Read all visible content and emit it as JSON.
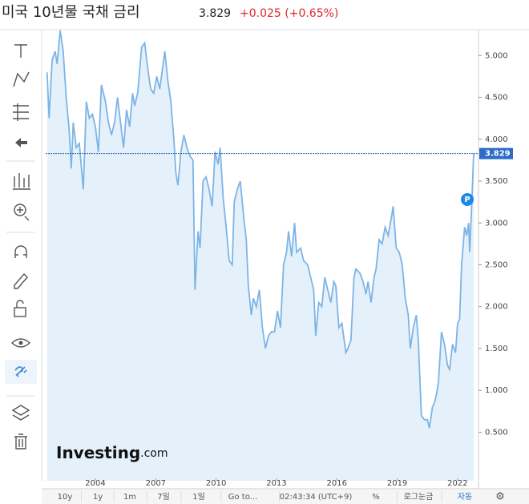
{
  "header": {
    "title": "미국 10년물 국채 금리",
    "change": "+0.025 (+0.65%)"
  },
  "chart_data": {
    "type": "line",
    "color": "#7db4e6",
    "area_color": "#e4f1fb",
    "last_value": 3.829,
    "marker_label": "P",
    "logo": "Investing",
    "logo_suffix": ".com",
    "x": [
      2001.6,
      2001.7,
      2001.85,
      2002.0,
      2002.1,
      2002.25,
      2002.4,
      2002.55,
      2002.7,
      2002.8,
      2002.9,
      2003.05,
      2003.2,
      2003.4,
      2003.55,
      2003.7,
      2003.85,
      2004.0,
      2004.15,
      2004.3,
      2004.5,
      2004.65,
      2004.8,
      2004.95,
      2005.1,
      2005.25,
      2005.4,
      2005.55,
      2005.7,
      2005.85,
      2005.95,
      2006.1,
      2006.3,
      2006.45,
      2006.6,
      2006.75,
      2006.9,
      2007.05,
      2007.2,
      2007.45,
      2007.6,
      2007.75,
      2007.9,
      2008.0,
      2008.1,
      2008.25,
      2008.4,
      2008.55,
      2008.7,
      2008.85,
      2008.95,
      2009.1,
      2009.2,
      2009.35,
      2009.5,
      2009.65,
      2009.8,
      2009.95,
      2010.1,
      2010.2,
      2010.35,
      2010.5,
      2010.65,
      2010.8,
      2010.9,
      2011.05,
      2011.2,
      2011.4,
      2011.5,
      2011.6,
      2011.75,
      2011.85,
      2012.0,
      2012.15,
      2012.3,
      2012.45,
      2012.6,
      2012.75,
      2012.9,
      2013.05,
      2013.2,
      2013.35,
      2013.5,
      2013.6,
      2013.75,
      2013.9,
      2014.0,
      2014.2,
      2014.35,
      2014.55,
      2014.7,
      2014.85,
      2014.95,
      2015.1,
      2015.25,
      2015.4,
      2015.55,
      2015.7,
      2015.85,
      2015.95,
      2016.1,
      2016.25,
      2016.45,
      2016.55,
      2016.7,
      2016.85,
      2016.95,
      2017.15,
      2017.3,
      2017.45,
      2017.55,
      2017.7,
      2017.85,
      2017.95,
      2018.1,
      2018.25,
      2018.4,
      2018.55,
      2018.7,
      2018.8,
      2018.95,
      2019.1,
      2019.25,
      2019.4,
      2019.55,
      2019.65,
      2019.8,
      2019.95,
      2020.05,
      2020.2,
      2020.35,
      2020.5,
      2020.6,
      2020.75,
      2020.85,
      2020.95,
      2021.05,
      2021.2,
      2021.35,
      2021.5,
      2021.6,
      2021.75,
      2021.9,
      2022.0,
      2022.1,
      2022.2,
      2022.35,
      2022.45,
      2022.55,
      2022.6,
      2022.7,
      2022.8
    ],
    "values": [
      4.8,
      4.25,
      4.95,
      5.05,
      4.9,
      5.3,
      5.05,
      4.5,
      4.1,
      3.65,
      4.2,
      3.9,
      3.95,
      3.4,
      4.45,
      4.25,
      4.3,
      4.15,
      3.85,
      4.65,
      4.45,
      4.2,
      4.05,
      4.2,
      4.5,
      4.2,
      3.9,
      4.35,
      4.15,
      4.55,
      4.4,
      4.55,
      5.1,
      5.15,
      4.85,
      4.6,
      4.55,
      4.75,
      4.6,
      5.05,
      4.7,
      4.45,
      4.0,
      3.6,
      3.45,
      3.85,
      4.05,
      3.9,
      3.8,
      3.75,
      2.2,
      2.9,
      2.7,
      3.5,
      3.55,
      3.4,
      3.2,
      3.85,
      3.7,
      3.9,
      3.3,
      2.95,
      2.55,
      2.5,
      3.25,
      3.4,
      3.5,
      3.0,
      2.8,
      2.25,
      1.9,
      2.1,
      2.0,
      2.2,
      1.75,
      1.5,
      1.65,
      1.7,
      1.7,
      1.95,
      1.75,
      2.5,
      2.65,
      2.9,
      2.6,
      3.0,
      2.65,
      2.7,
      2.55,
      2.5,
      2.35,
      2.2,
      1.65,
      2.05,
      2.0,
      2.35,
      2.2,
      2.05,
      2.3,
      2.25,
      1.75,
      1.8,
      1.45,
      1.5,
      1.6,
      2.35,
      2.45,
      2.4,
      2.3,
      2.15,
      2.3,
      2.05,
      2.35,
      2.45,
      2.8,
      2.75,
      2.95,
      2.85,
      3.05,
      3.2,
      2.7,
      2.65,
      2.5,
      2.1,
      1.9,
      1.5,
      1.75,
      1.9,
      1.6,
      0.7,
      0.65,
      0.65,
      0.55,
      0.8,
      0.85,
      0.95,
      1.1,
      1.7,
      1.55,
      1.3,
      1.25,
      1.55,
      1.45,
      1.8,
      1.85,
      2.5,
      2.95,
      2.85,
      3.0,
      2.65,
      3.2,
      3.829
    ],
    "xlim": [
      2001.53,
      2023.04
    ],
    "xticks": [
      2004,
      2007,
      2010,
      2013,
      2016,
      2019,
      2022
    ],
    "ylim": [
      -0.08,
      5.3
    ],
    "yticks": [
      {
        "value": 0.5,
        "label": "0.500"
      },
      {
        "value": 1,
        "label": "1.000"
      },
      {
        "value": 1.5,
        "label": "1.500"
      },
      {
        "value": 2,
        "label": "2.000"
      },
      {
        "value": 2.5,
        "label": "2.500"
      },
      {
        "value": 3,
        "label": "3.000"
      },
      {
        "value": 3.5,
        "label": "3.500"
      },
      {
        "value": 4,
        "label": "4.000"
      },
      {
        "value": 4.5,
        "label": "4.500"
      },
      {
        "value": 5,
        "label": "5.000"
      }
    ]
  },
  "toolbar": [
    "10y",
    "1y",
    "1m",
    "7일",
    "1일",
    "Go to...",
    "02:43:34 (UTC+9)",
    "%",
    "로그눈금",
    "자동"
  ]
}
